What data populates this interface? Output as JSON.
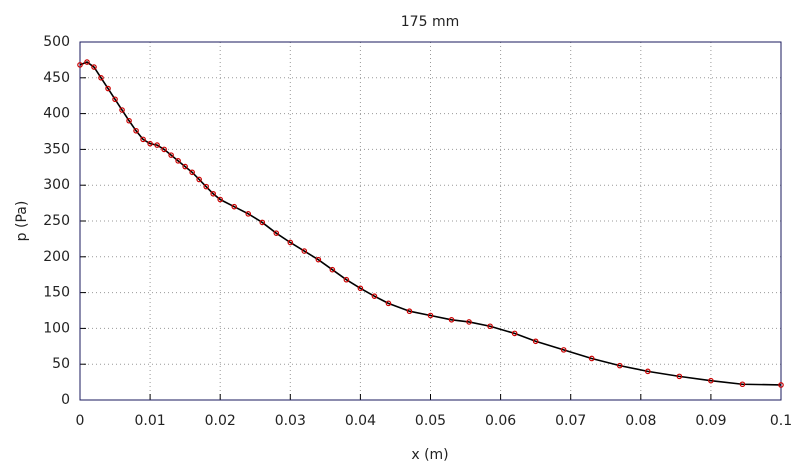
{
  "chart_data": {
    "type": "line",
    "title": "175 mm",
    "xlabel": "x (m)",
    "ylabel": "p (Pa)",
    "x": [
      0,
      0.001,
      0.002,
      0.003,
      0.004,
      0.005,
      0.006,
      0.007,
      0.008,
      0.009,
      0.01,
      0.011,
      0.012,
      0.013,
      0.014,
      0.015,
      0.016,
      0.017,
      0.018,
      0.019,
      0.02,
      0.022,
      0.024,
      0.026,
      0.028,
      0.03,
      0.032,
      0.034,
      0.036,
      0.038,
      0.04,
      0.042,
      0.044,
      0.047,
      0.05,
      0.053,
      0.0555,
      0.0585,
      0.062,
      0.065,
      0.069,
      0.073,
      0.077,
      0.081,
      0.0855,
      0.09,
      0.0945,
      0.1
    ],
    "series": [
      {
        "color": "#000000",
        "marker_color": "#cc0000",
        "values": [
          468,
          472,
          465,
          450,
          435,
          420,
          405,
          390,
          376,
          364,
          358,
          356,
          350,
          342,
          334,
          326,
          318,
          308,
          298,
          288,
          280,
          270,
          260,
          248,
          233,
          220,
          208,
          196,
          182,
          168,
          156,
          145,
          135,
          124,
          118,
          112,
          109,
          103,
          93,
          82,
          70,
          58,
          48,
          40,
          33,
          27,
          22,
          21
        ]
      }
    ],
    "xlim": [
      0,
      0.1
    ],
    "ylim": [
      0,
      500
    ],
    "xticks": [
      0,
      0.01,
      0.02,
      0.03,
      0.04,
      0.05,
      0.06,
      0.07,
      0.08,
      0.09,
      0.1
    ],
    "yticks": [
      0,
      50,
      100,
      150,
      200,
      250,
      300,
      350,
      400,
      450,
      500
    ],
    "grid": true
  }
}
